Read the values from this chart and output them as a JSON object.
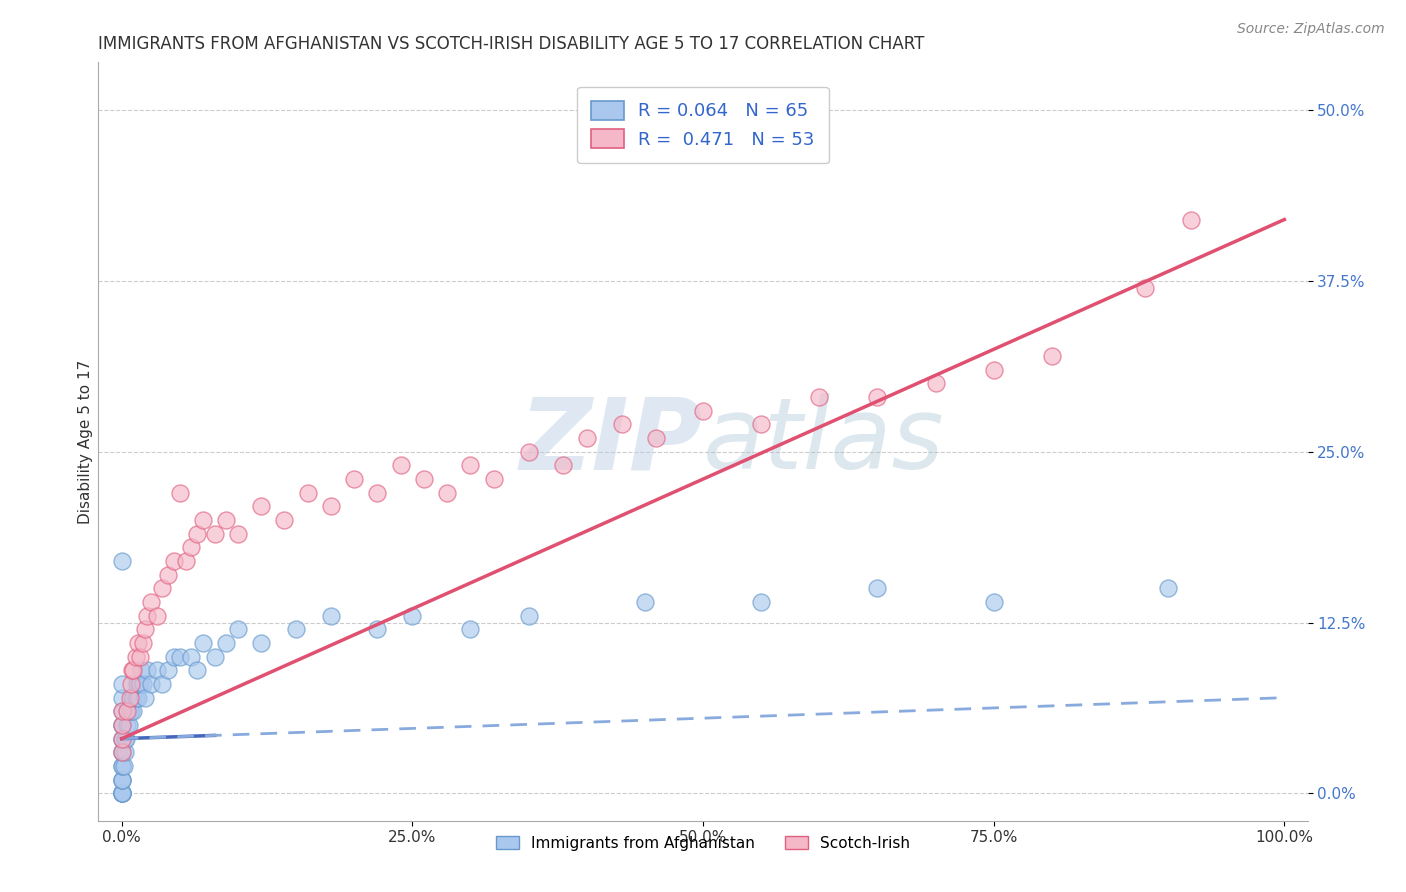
{
  "title": "IMMIGRANTS FROM AFGHANISTAN VS SCOTCH-IRISH DISABILITY AGE 5 TO 17 CORRELATION CHART",
  "source": "Source: ZipAtlas.com",
  "ylabel": "Disability Age 5 to 17",
  "xlim": [
    -0.02,
    1.02
  ],
  "ylim": [
    -0.02,
    0.535
  ],
  "xticks": [
    0.0,
    0.25,
    0.5,
    0.75,
    1.0
  ],
  "xticklabels": [
    "0.0%",
    "25.0%",
    "50.0%",
    "75.0%",
    "100.0%"
  ],
  "yticks": [
    0.0,
    0.125,
    0.25,
    0.375,
    0.5
  ],
  "yticklabels": [
    "0.0%",
    "12.5%",
    "25.0%",
    "37.5%",
    "50.0%"
  ],
  "grid_color": "#cccccc",
  "background_color": "#ffffff",
  "color_afghanistan": "#aac8ee",
  "color_scotch_irish": "#f4b8c8",
  "color_edge_afghanistan": "#6699cc",
  "color_edge_scotch_irish": "#e06080",
  "color_line_afghanistan_solid": "#4466bb",
  "color_line_afghanistan_dash": "#88aadd",
  "color_line_scotch_irish": "#e05070",
  "watermark_zip": "ZIP",
  "watermark_atlas": "atlas",
  "legend_label1": "Immigrants from Afghanistan",
  "legend_label2": "Scotch-Irish",
  "title_fontsize": 12,
  "axis_label_fontsize": 11,
  "tick_fontsize": 11,
  "source_fontsize": 10,
  "afg_x": [
    0.0,
    0.0,
    0.0,
    0.0,
    0.0,
    0.0,
    0.0,
    0.0,
    0.0,
    0.0,
    0.0,
    0.0,
    0.0,
    0.0,
    0.0,
    0.0,
    0.0,
    0.0,
    0.0,
    0.0,
    0.002,
    0.003,
    0.003,
    0.004,
    0.005,
    0.005,
    0.006,
    0.007,
    0.008,
    0.009,
    0.01,
    0.01,
    0.012,
    0.013,
    0.014,
    0.015,
    0.016,
    0.017,
    0.018,
    0.02,
    0.022,
    0.025,
    0.03,
    0.035,
    0.04,
    0.045,
    0.05,
    0.06,
    0.065,
    0.07,
    0.08,
    0.09,
    0.1,
    0.12,
    0.15,
    0.18,
    0.22,
    0.25,
    0.3,
    0.35,
    0.45,
    0.55,
    0.65,
    0.75,
    0.9
  ],
  "afg_y": [
    0.0,
    0.0,
    0.0,
    0.0,
    0.0,
    0.01,
    0.01,
    0.01,
    0.02,
    0.02,
    0.03,
    0.03,
    0.04,
    0.04,
    0.05,
    0.05,
    0.06,
    0.07,
    0.08,
    0.17,
    0.02,
    0.03,
    0.04,
    0.04,
    0.05,
    0.06,
    0.05,
    0.06,
    0.06,
    0.07,
    0.06,
    0.07,
    0.07,
    0.08,
    0.07,
    0.08,
    0.08,
    0.09,
    0.08,
    0.07,
    0.09,
    0.08,
    0.09,
    0.08,
    0.09,
    0.1,
    0.1,
    0.1,
    0.09,
    0.11,
    0.1,
    0.11,
    0.12,
    0.11,
    0.12,
    0.13,
    0.12,
    0.13,
    0.12,
    0.13,
    0.14,
    0.14,
    0.15,
    0.14,
    0.15
  ],
  "si_x": [
    0.0,
    0.0,
    0.0,
    0.0,
    0.005,
    0.007,
    0.008,
    0.009,
    0.01,
    0.012,
    0.014,
    0.016,
    0.018,
    0.02,
    0.022,
    0.025,
    0.03,
    0.035,
    0.04,
    0.045,
    0.05,
    0.055,
    0.06,
    0.065,
    0.07,
    0.08,
    0.09,
    0.1,
    0.12,
    0.14,
    0.16,
    0.18,
    0.2,
    0.22,
    0.24,
    0.26,
    0.28,
    0.3,
    0.32,
    0.35,
    0.38,
    0.4,
    0.43,
    0.46,
    0.5,
    0.55,
    0.6,
    0.65,
    0.7,
    0.75,
    0.8,
    0.88,
    0.92
  ],
  "si_y": [
    0.03,
    0.04,
    0.05,
    0.06,
    0.06,
    0.07,
    0.08,
    0.09,
    0.09,
    0.1,
    0.11,
    0.1,
    0.11,
    0.12,
    0.13,
    0.14,
    0.13,
    0.15,
    0.16,
    0.17,
    0.22,
    0.17,
    0.18,
    0.19,
    0.2,
    0.19,
    0.2,
    0.19,
    0.21,
    0.2,
    0.22,
    0.21,
    0.23,
    0.22,
    0.24,
    0.23,
    0.22,
    0.24,
    0.23,
    0.25,
    0.24,
    0.26,
    0.27,
    0.26,
    0.28,
    0.27,
    0.29,
    0.29,
    0.3,
    0.31,
    0.32,
    0.37,
    0.42
  ],
  "afg_trend_x": [
    0.0,
    1.0
  ],
  "afg_trend_y": [
    0.04,
    0.07
  ],
  "si_trend_x": [
    0.0,
    1.0
  ],
  "si_trend_y": [
    0.04,
    0.42
  ]
}
